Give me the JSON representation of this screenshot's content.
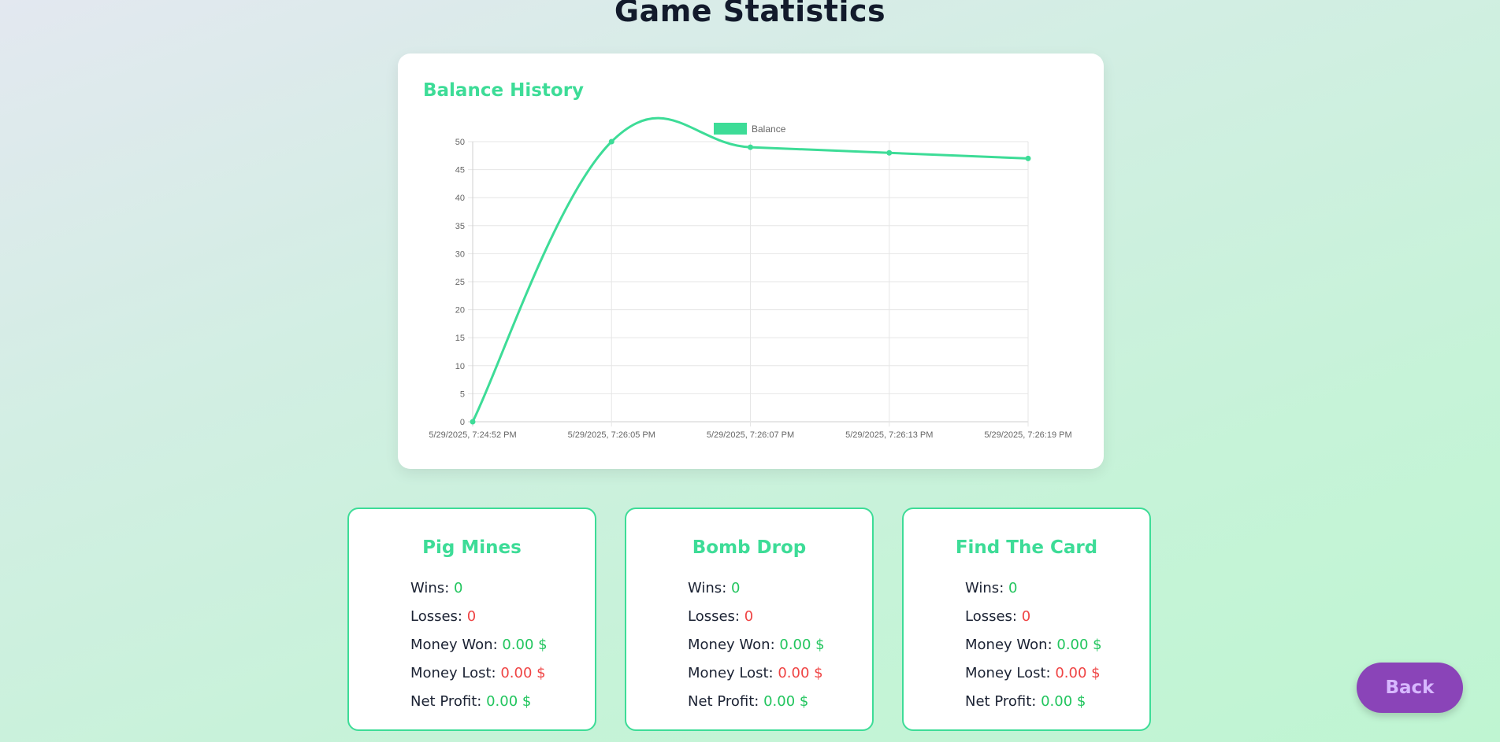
{
  "page": {
    "title": "Game Statistics"
  },
  "balance_card": {
    "title": "Balance History"
  },
  "chart_data": {
    "type": "line",
    "title": "",
    "xlabel": "",
    "ylabel": "",
    "x": [
      "5/29/2025, 7:24:52 PM",
      "5/29/2025, 7:26:05 PM",
      "5/29/2025, 7:26:07 PM",
      "5/29/2025, 7:26:13 PM",
      "5/29/2025, 7:26:19 PM"
    ],
    "series": [
      {
        "name": "Balance",
        "values": [
          0,
          50,
          49,
          48,
          47
        ],
        "color": "#3ddc97"
      }
    ],
    "ylim": [
      0,
      50
    ],
    "yticks": [
      0,
      5,
      10,
      15,
      20,
      25,
      30,
      35,
      40,
      45,
      50
    ],
    "grid": true,
    "legend": "top-center"
  },
  "games": [
    {
      "name": "Pig Mines",
      "wins_label": "Wins:",
      "wins": "0",
      "losses_label": "Losses:",
      "losses": "0",
      "won_label": "Money Won:",
      "money_won": "0.00 $",
      "lost_label": "Money Lost:",
      "money_lost": "0.00 $",
      "net_label": "Net Profit:",
      "net_profit": "0.00 $"
    },
    {
      "name": "Bomb Drop",
      "wins_label": "Wins:",
      "wins": "0",
      "losses_label": "Losses:",
      "losses": "0",
      "won_label": "Money Won:",
      "money_won": "0.00 $",
      "lost_label": "Money Lost:",
      "money_lost": "0.00 $",
      "net_label": "Net Profit:",
      "net_profit": "0.00 $"
    },
    {
      "name": "Find The Card",
      "wins_label": "Wins:",
      "wins": "0",
      "losses_label": "Losses:",
      "losses": "0",
      "won_label": "Money Won:",
      "money_won": "0.00 $",
      "lost_label": "Money Lost:",
      "money_lost": "0.00 $",
      "net_label": "Net Profit:",
      "net_profit": "0.00 $"
    }
  ],
  "back_button": {
    "label": "Back"
  },
  "colors": {
    "accent": "#3ddc97",
    "positive": "#22c55e",
    "negative": "#ef4444",
    "back_button": "#8a44b8"
  }
}
